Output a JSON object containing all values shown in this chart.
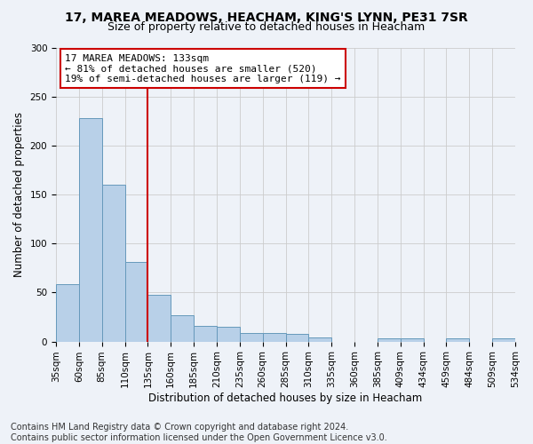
{
  "title1": "17, MAREA MEADOWS, HEACHAM, KING'S LYNN, PE31 7SR",
  "title2": "Size of property relative to detached houses in Heacham",
  "xlabel": "Distribution of detached houses by size in Heacham",
  "ylabel": "Number of detached properties",
  "bar_values": [
    59,
    228,
    160,
    81,
    48,
    27,
    16,
    15,
    9,
    9,
    8,
    4,
    0,
    0,
    3,
    3,
    0,
    3,
    0,
    3
  ],
  "bin_labels": [
    "35sqm",
    "60sqm",
    "85sqm",
    "110sqm",
    "135sqm",
    "160sqm",
    "185sqm",
    "210sqm",
    "235sqm",
    "260sqm",
    "285sqm",
    "310sqm",
    "335sqm",
    "360sqm",
    "385sqm",
    "409sqm",
    "434sqm",
    "459sqm",
    "484sqm",
    "509sqm",
    "534sqm"
  ],
  "bar_color": "#b8d0e8",
  "bar_edge_color": "#6699bb",
  "grid_color": "#cccccc",
  "vline_x_index": 4,
  "vline_color": "#cc0000",
  "annotation_line1": "17 MAREA MEADOWS: 133sqm",
  "annotation_line2": "← 81% of detached houses are smaller (520)",
  "annotation_line3": "19% of semi-detached houses are larger (119) →",
  "annotation_box_color": "#ffffff",
  "annotation_box_edge": "#cc0000",
  "footer_text": "Contains HM Land Registry data © Crown copyright and database right 2024.\nContains public sector information licensed under the Open Government Licence v3.0.",
  "ylim": [
    0,
    300
  ],
  "yticks": [
    0,
    50,
    100,
    150,
    200,
    250,
    300
  ],
  "background_color": "#eef2f8",
  "title1_fontsize": 10,
  "title2_fontsize": 9,
  "ylabel_fontsize": 8.5,
  "xlabel_fontsize": 8.5,
  "tick_fontsize": 7.5,
  "footer_fontsize": 7,
  "annot_fontsize": 8
}
